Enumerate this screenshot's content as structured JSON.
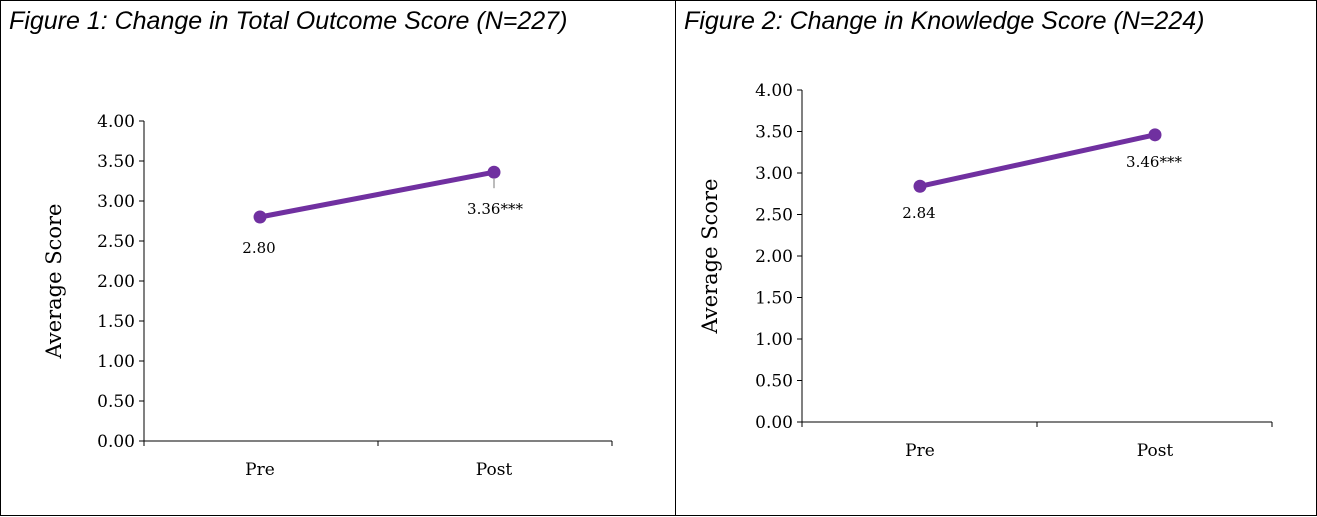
{
  "chart_data": [
    {
      "type": "line",
      "title": "Figure 1: Change in Total Outcome Score (N=227)",
      "xlabel": "",
      "ylabel": "Average Score",
      "categories": [
        "Pre",
        "Post"
      ],
      "values": [
        2.8,
        3.36
      ],
      "data_labels": [
        "2.80",
        "3.36***"
      ],
      "ylim": [
        0,
        4
      ],
      "yticks": [
        "0.00",
        "0.50",
        "1.00",
        "1.50",
        "2.00",
        "2.50",
        "3.00",
        "3.50",
        "4.00"
      ],
      "grid": false,
      "legend": "none",
      "color": "#7030A0"
    },
    {
      "type": "line",
      "title": "Figure 2: Change in Knowledge Score (N=224)",
      "xlabel": "",
      "ylabel": "Average Score",
      "categories": [
        "Pre",
        "Post"
      ],
      "values": [
        2.84,
        3.46
      ],
      "data_labels": [
        "2.84",
        "3.46***"
      ],
      "ylim": [
        0,
        4
      ],
      "yticks": [
        "0.00",
        "0.50",
        "1.00",
        "1.50",
        "2.00",
        "2.50",
        "3.00",
        "3.50",
        "4.00"
      ],
      "grid": false,
      "legend": "none",
      "color": "#7030A0"
    }
  ]
}
